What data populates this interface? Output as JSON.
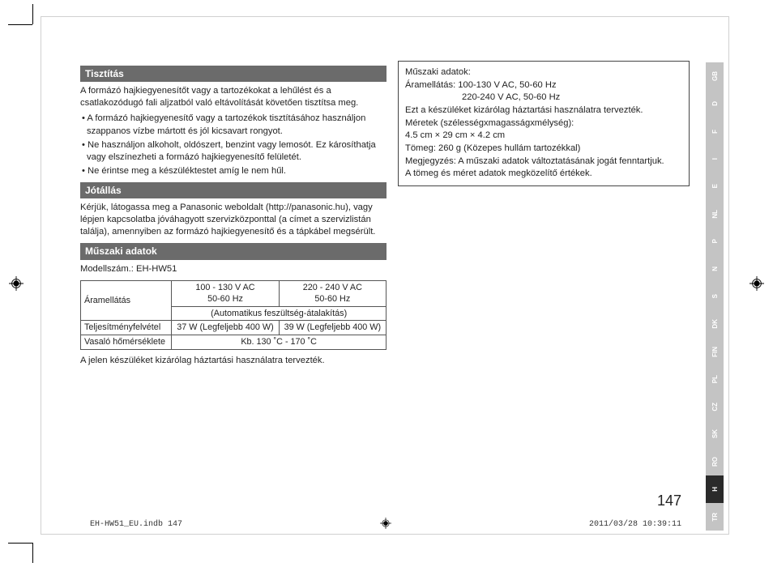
{
  "sections": {
    "cleaning": {
      "title": "Tisztítás",
      "intro": "A formázó hajkiegyenesítőt vagy a tartozékokat a lehűlést és a csatlakozódugó fali aljzatból való eltávolítását követően tisztítsa meg.",
      "b1": "• A formázó hajkiegyenesítő vagy a tartozékok tisztításához használjon szappanos vízbe mártott és jól kicsavart rongyot.",
      "b2": "• Ne használjon alkoholt, oldószert, benzint vagy lemosót. Ez károsíthatja vagy elszínezheti a formázó hajkiegyenesítő felületét.",
      "b3": "• Ne érintse meg a készüléktestet amíg le nem hűl."
    },
    "warranty": {
      "title": "Jótállás",
      "text": "Kérjük, látogassa meg a Panasonic weboldalt (http://panasonic.hu), vagy lépjen kapcsolatba jóváhagyott szervizközponttal (a címet a szervizlistán találja), amennyiben az formázó hajkiegyenesítő és a tápkábel megsérült."
    },
    "specs": {
      "title": "Műszaki adatok",
      "model": "Modellszám.: EH-HW51",
      "table": {
        "r1c1": "Áramellátás",
        "r1c2a": "100 - 130 V AC",
        "r1c2b": "50-60 Hz",
        "r1c3a": "220 - 240 V AC",
        "r1c3b": "50-60 Hz",
        "r2": "(Automatikus feszültség-átalakítás)",
        "r3c1": "Teljesítményfelvétel",
        "r3c2": "37 W (Legfeljebb 400 W)",
        "r3c3": "39 W (Legfeljebb 400 W)",
        "r4c1": "Vasaló hőmérséklete",
        "r4c2": "Kb. 130 ˚C - 170 ˚C"
      },
      "note": "A jelen készüléket kizárólag háztartási használatra tervezték."
    },
    "box": {
      "l1": "Műszaki adatok:",
      "l2": "Áramellátás: 100-130 V AC, 50-60 Hz",
      "l3": "220-240 V AC, 50-60 Hz",
      "l4": "Ezt a készüléket kizárólag háztartási használatra tervezték.",
      "l5": "Méretek (szélességxmagasságxmélység):",
      "l6": "4.5 cm × 29 cm × 4.2 cm",
      "l7": "Tömeg: 260 g (Közepes hullám tartozékkal)",
      "l8": "Megjegyzés: A műszaki adatok változtatásának jogát fenntartjuk.",
      "l9": "A tömeg és méret adatok megközelítő értékek."
    }
  },
  "page_number": "147",
  "footer": {
    "left": "EH-HW51_EU.indb   147",
    "right": "2011/03/28   10:39:11"
  },
  "lang_tabs": [
    "GB",
    "D",
    "F",
    "I",
    "E",
    "NL",
    "P",
    "N",
    "S",
    "DK",
    "FIN",
    "PL",
    "CZ",
    "SK",
    "RO",
    "H",
    "TR"
  ],
  "active_lang": "H"
}
